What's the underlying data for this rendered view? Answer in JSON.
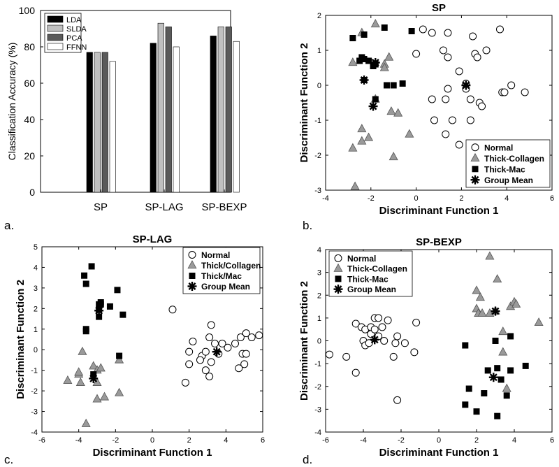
{
  "chart_data": [
    {
      "panel": "a.",
      "type": "bar",
      "title": "",
      "xlabel": "",
      "ylabel": "Classification Accuracy (%)",
      "ylim": [
        0,
        100
      ],
      "yticks": [
        0,
        20,
        40,
        60,
        80,
        100
      ],
      "categories": [
        "SP",
        "SP-LAG",
        "SP-BEXP"
      ],
      "legend_placement": "top-left",
      "series": [
        {
          "name": "LDA",
          "color": "#000000",
          "values": [
            77,
            82,
            86
          ]
        },
        {
          "name": "SLDA",
          "color": "#c0c0c0",
          "values": [
            77,
            93,
            91
          ]
        },
        {
          "name": "PCA",
          "color": "#5a5a5a",
          "values": [
            77,
            91,
            91
          ]
        },
        {
          "name": "FFNN",
          "color": "#ffffff",
          "values": [
            72,
            80,
            83
          ]
        }
      ]
    },
    {
      "panel": "b.",
      "type": "scatter",
      "title": "SP",
      "xlabel": "Discriminant Function 1",
      "ylabel": "Discriminant Function 2",
      "xlim": [
        -4,
        6
      ],
      "ylim": [
        -3,
        2
      ],
      "xticks": [
        -4,
        -2,
        0,
        2,
        4,
        6
      ],
      "yticks": [
        -3,
        -2,
        -1,
        0,
        1,
        2
      ],
      "legend_placement": "bottom-right",
      "series": [
        {
          "name": "Normal",
          "marker": "circle",
          "points": [
            [
              0.3,
              1.6
            ],
            [
              0.7,
              1.5
            ],
            [
              1.2,
              1.0
            ],
            [
              1.4,
              1.5
            ],
            [
              2.5,
              1.4
            ],
            [
              2.6,
              0.9
            ],
            [
              3.1,
              1.0
            ],
            [
              3.7,
              1.6
            ],
            [
              0.0,
              0.9
            ],
            [
              1.4,
              0.8
            ],
            [
              1.9,
              0.4
            ],
            [
              2.7,
              0.8
            ],
            [
              4.2,
              0.0
            ],
            [
              3.8,
              -0.2
            ],
            [
              3.9,
              -0.2
            ],
            [
              4.8,
              -0.2
            ],
            [
              1.4,
              -0.1
            ],
            [
              2.2,
              -0.1
            ],
            [
              2.4,
              -0.4
            ],
            [
              2.8,
              -0.5
            ],
            [
              2.9,
              -0.6
            ],
            [
              0.7,
              -0.4
            ],
            [
              1.3,
              -0.4
            ],
            [
              0.8,
              -1.0
            ],
            [
              1.6,
              -1.0
            ],
            [
              2.4,
              -1.0
            ],
            [
              1.9,
              -1.7
            ],
            [
              1.3,
              -1.4
            ],
            [
              2.2,
              0.05
            ]
          ]
        },
        {
          "name": "Thick-Collagen",
          "marker": "triangle",
          "points": [
            [
              -1.8,
              1.75
            ],
            [
              -2.4,
              1.5
            ],
            [
              -2.8,
              0.65
            ],
            [
              -1.2,
              0.8
            ],
            [
              -1.4,
              0.6
            ],
            [
              -1.4,
              0.5
            ],
            [
              -1.8,
              -0.4
            ],
            [
              -1.1,
              -0.75
            ],
            [
              -0.8,
              -0.8
            ],
            [
              -2.4,
              -1.25
            ],
            [
              -2.1,
              -1.5
            ],
            [
              -2.4,
              -1.6
            ],
            [
              -0.3,
              -1.4
            ],
            [
              -2.8,
              -1.8
            ],
            [
              -1.0,
              -2.05
            ],
            [
              -2.7,
              -2.9
            ]
          ]
        },
        {
          "name": "Thick-Mac",
          "marker": "square",
          "points": [
            [
              -2.8,
              1.35
            ],
            [
              -2.3,
              1.45
            ],
            [
              -1.4,
              1.65
            ],
            [
              -0.2,
              1.55
            ],
            [
              -2.4,
              0.8
            ],
            [
              -2.3,
              0.75
            ],
            [
              -2.5,
              0.7
            ],
            [
              -2.1,
              0.7
            ],
            [
              -1.9,
              0.55
            ],
            [
              -1.8,
              0.6
            ],
            [
              -1.0,
              0.0
            ],
            [
              -1.3,
              0.0
            ],
            [
              -0.6,
              0.05
            ],
            [
              -2.3,
              0.15
            ],
            [
              -1.8,
              -0.4
            ]
          ]
        },
        {
          "name": "Group Mean",
          "marker": "asterisk",
          "points": [
            [
              -1.8,
              0.65
            ],
            [
              -2.3,
              0.15
            ],
            [
              -1.9,
              -0.6
            ],
            [
              2.2,
              0.0
            ]
          ]
        }
      ]
    },
    {
      "panel": "c.",
      "type": "scatter",
      "title": "SP-LAG",
      "xlabel": "Discriminant Function 1",
      "ylabel": "Discriminant Function 2",
      "xlim": [
        -6,
        6
      ],
      "ylim": [
        -4,
        5
      ],
      "xticks": [
        -6,
        -4,
        -2,
        0,
        2,
        4,
        6
      ],
      "yticks": [
        -4,
        -3,
        -2,
        -1,
        0,
        1,
        2,
        3,
        4,
        5
      ],
      "legend_placement": "top-right",
      "series": [
        {
          "name": "Normal",
          "marker": "circle",
          "points": [
            [
              1.1,
              1.95
            ],
            [
              2.2,
              0.4
            ],
            [
              2.0,
              -0.1
            ],
            [
              2.7,
              -0.3
            ],
            [
              2.9,
              -0.1
            ],
            [
              3.1,
              0.6
            ],
            [
              3.2,
              1.2
            ],
            [
              3.4,
              0.3
            ],
            [
              3.6,
              -0.2
            ],
            [
              3.8,
              0.3
            ],
            [
              4.1,
              0.1
            ],
            [
              4.5,
              0.3
            ],
            [
              4.8,
              0.6
            ],
            [
              5.1,
              0.8
            ],
            [
              5.4,
              0.6
            ],
            [
              5.8,
              0.7
            ],
            [
              4.9,
              -0.2
            ],
            [
              5.1,
              -0.2
            ],
            [
              5.0,
              -0.7
            ],
            [
              4.7,
              -0.9
            ],
            [
              3.2,
              -0.6
            ],
            [
              2.6,
              -0.5
            ],
            [
              2.9,
              -1.0
            ],
            [
              3.1,
              -1.3
            ],
            [
              2.0,
              -0.7
            ],
            [
              1.8,
              -1.6
            ]
          ]
        },
        {
          "name": "Thick/Collagen",
          "marker": "triangle",
          "points": [
            [
              -3.8,
              -0.1
            ],
            [
              -4.6,
              -1.5
            ],
            [
              -4.0,
              -1.2
            ],
            [
              -3.9,
              -1.6
            ],
            [
              -4.0,
              -1.1
            ],
            [
              -3.2,
              -0.8
            ],
            [
              -3.0,
              -1.0
            ],
            [
              -2.8,
              -0.9
            ],
            [
              -3.0,
              -1.6
            ],
            [
              -3.0,
              -2.4
            ],
            [
              -2.6,
              -2.3
            ],
            [
              -1.8,
              -2.1
            ],
            [
              -1.8,
              -0.5
            ],
            [
              -3.6,
              -3.6
            ]
          ]
        },
        {
          "name": "Thick/Mac",
          "marker": "square",
          "points": [
            [
              -3.3,
              4.05
            ],
            [
              -3.7,
              3.6
            ],
            [
              -3.6,
              3.2
            ],
            [
              -3.6,
              1.0
            ],
            [
              -3.6,
              0.9
            ],
            [
              -2.9,
              2.2
            ],
            [
              -2.8,
              2.3
            ],
            [
              -2.8,
              2.2
            ],
            [
              -2.3,
              2.1
            ],
            [
              -2.9,
              1.95
            ],
            [
              -1.9,
              2.9
            ],
            [
              -2.9,
              1.6
            ],
            [
              -1.6,
              1.7
            ],
            [
              -3.2,
              -1.2
            ],
            [
              -1.8,
              -0.3
            ]
          ]
        },
        {
          "name": "Group Mean",
          "marker": "asterisk",
          "points": [
            [
              -2.9,
              1.9
            ],
            [
              -3.2,
              -1.4
            ],
            [
              3.5,
              -0.1
            ]
          ]
        }
      ]
    },
    {
      "panel": "d.",
      "type": "scatter",
      "title": "SP-BEXP",
      "xlabel": "Discriminant Function 1",
      "ylabel": "Discriminant Function 2",
      "xlim": [
        -6,
        6
      ],
      "ylim": [
        -4,
        4
      ],
      "xticks": [
        -6,
        -4,
        -2,
        0,
        2,
        4,
        6
      ],
      "yticks": [
        -4,
        -3,
        -2,
        -1,
        0,
        1,
        2,
        3,
        4
      ],
      "legend_placement": "top-left",
      "series": [
        {
          "name": "Normal",
          "marker": "circle",
          "points": [
            [
              -4.4,
              0.75
            ],
            [
              -4.1,
              0.6
            ],
            [
              -3.9,
              0.5
            ],
            [
              -3.6,
              0.3
            ],
            [
              -3.4,
              1.0
            ],
            [
              -3.2,
              1.0
            ],
            [
              -3.0,
              0.6
            ],
            [
              -2.7,
              0.9
            ],
            [
              -3.6,
              0.6
            ],
            [
              -3.4,
              0.5
            ],
            [
              -3.2,
              0.2
            ],
            [
              -2.9,
              0.0
            ],
            [
              -4.0,
              0.0
            ],
            [
              -3.9,
              -0.2
            ],
            [
              -3.7,
              -0.1
            ],
            [
              -2.2,
              0.2
            ],
            [
              -2.3,
              -0.1
            ],
            [
              -1.8,
              -0.1
            ],
            [
              -1.2,
              0.8
            ],
            [
              -1.3,
              -0.5
            ],
            [
              -2.4,
              -0.7
            ],
            [
              -4.9,
              -0.7
            ],
            [
              -5.8,
              -0.6
            ],
            [
              -4.4,
              -1.4
            ],
            [
              -2.2,
              -2.6
            ]
          ]
        },
        {
          "name": "Thick-Collagen",
          "marker": "triangle",
          "points": [
            [
              2.7,
              3.7
            ],
            [
              3.1,
              2.7
            ],
            [
              2.0,
              2.2
            ],
            [
              2.2,
              1.9
            ],
            [
              2.0,
              1.4
            ],
            [
              2.1,
              1.2
            ],
            [
              2.3,
              1.2
            ],
            [
              2.7,
              1.2
            ],
            [
              3.0,
              1.3
            ],
            [
              3.4,
              0.4
            ],
            [
              3.4,
              -0.5
            ],
            [
              3.6,
              -2.1
            ],
            [
              3.8,
              1.5
            ],
            [
              4.0,
              1.7
            ],
            [
              4.1,
              1.6
            ],
            [
              5.3,
              0.8
            ]
          ]
        },
        {
          "name": "Thick-Mac",
          "marker": "square",
          "points": [
            [
              1.4,
              -0.2
            ],
            [
              1.6,
              -2.1
            ],
            [
              1.4,
              -2.8
            ],
            [
              2.0,
              -3.1
            ],
            [
              2.4,
              -2.3
            ],
            [
              2.6,
              -1.3
            ],
            [
              3.1,
              -1.2
            ],
            [
              3.1,
              -3.3
            ],
            [
              3.3,
              -1.7
            ],
            [
              3.6,
              -2.4
            ],
            [
              3.8,
              -1.3
            ],
            [
              3.8,
              0.2
            ],
            [
              4.6,
              -1.1
            ],
            [
              3.0,
              0.0
            ]
          ]
        },
        {
          "name": "Group Mean",
          "marker": "asterisk",
          "points": [
            [
              -3.4,
              0.05
            ],
            [
              3.0,
              1.3
            ],
            [
              2.9,
              -1.6
            ]
          ]
        }
      ]
    }
  ]
}
